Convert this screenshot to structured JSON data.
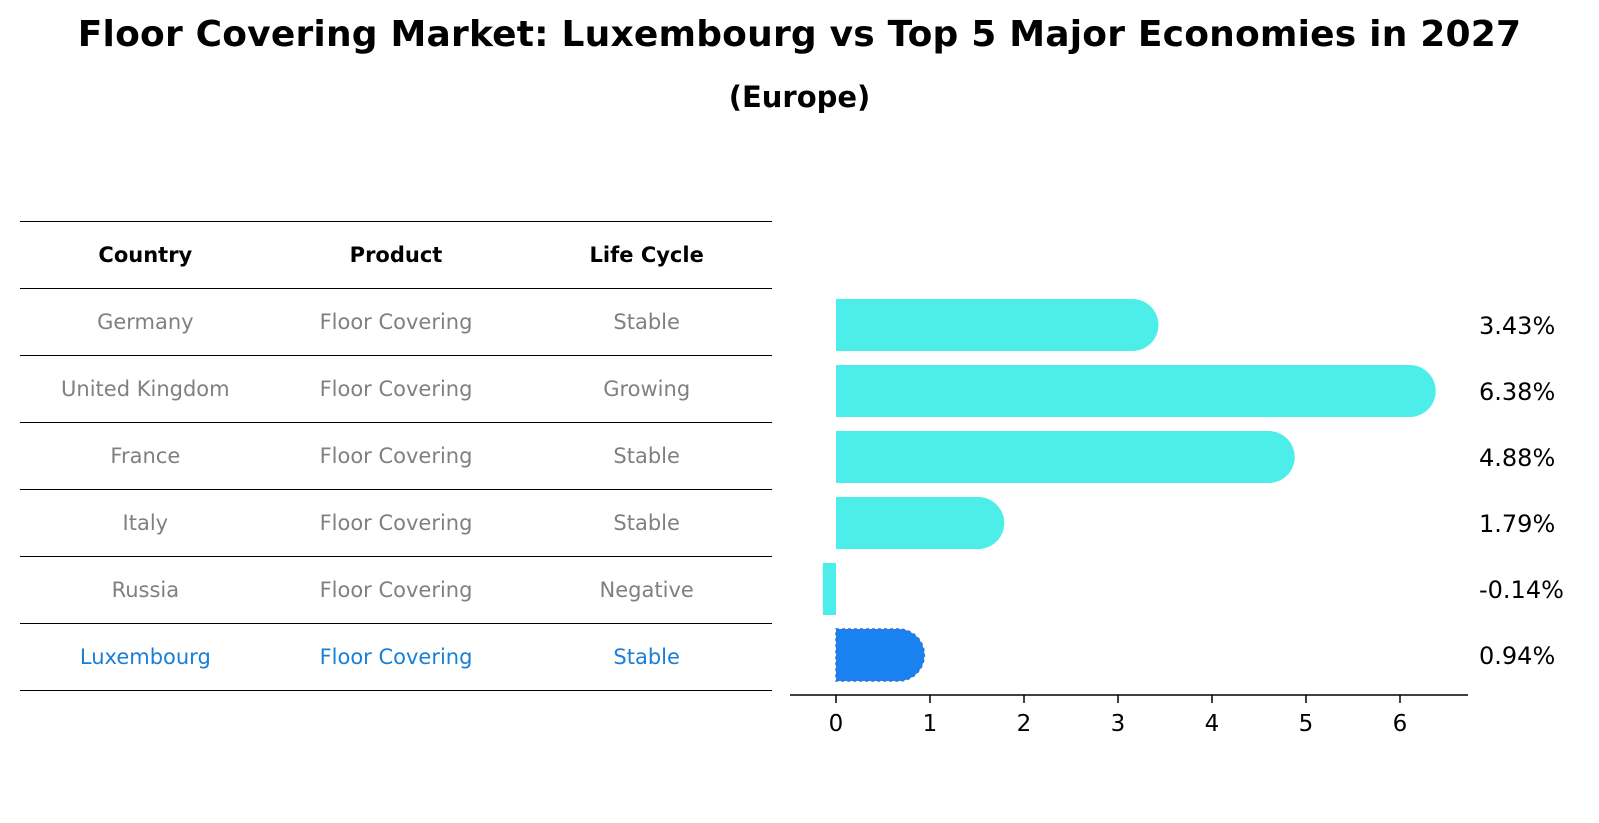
{
  "title": "Floor Covering Market: Luxembourg vs Top 5 Major Economies in 2027",
  "subtitle": "(Europe)",
  "table": {
    "headers": [
      "Country",
      "Product",
      "Life Cycle"
    ],
    "rows": [
      {
        "country": "Germany",
        "product": "Floor Covering",
        "life_cycle": "Stable"
      },
      {
        "country": "United Kingdom",
        "product": "Floor Covering",
        "life_cycle": "Growing"
      },
      {
        "country": "France",
        "product": "Floor Covering",
        "life_cycle": "Stable"
      },
      {
        "country": "Italy",
        "product": "Floor Covering",
        "life_cycle": "Stable"
      },
      {
        "country": "Russia",
        "product": "Floor Covering",
        "life_cycle": "Negative"
      },
      {
        "country": "Luxembourg",
        "product": "Floor Covering",
        "life_cycle": "Stable"
      }
    ]
  },
  "colors": {
    "bar": "#4deeea",
    "highlight_bar": "#1a82f0",
    "highlight_text": "#1a7fd6",
    "muted_text": "#808080"
  },
  "chart_data": {
    "type": "bar",
    "orientation": "horizontal",
    "categories": [
      "Germany",
      "United Kingdom",
      "France",
      "Italy",
      "Russia",
      "Luxembourg"
    ],
    "values": [
      3.43,
      6.38,
      4.88,
      1.79,
      -0.14,
      0.94
    ],
    "value_labels": [
      "3.43%",
      "6.38%",
      "4.88%",
      "1.79%",
      "-0.14%",
      "0.94%"
    ],
    "highlight": "Luxembourg",
    "xticks": [
      0,
      1,
      2,
      3,
      4,
      5,
      6
    ],
    "xlim": [
      -0.5,
      6.7
    ],
    "title": "",
    "xlabel": "",
    "ylabel": "",
    "grid": false
  }
}
